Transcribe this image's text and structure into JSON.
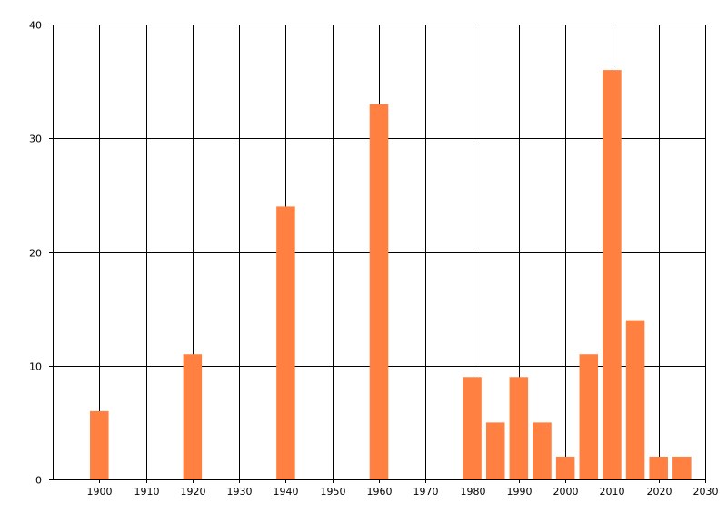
{
  "chart_data": {
    "type": "bar",
    "x": [
      1900,
      1920,
      1940,
      1960,
      1980,
      1985,
      1990,
      1995,
      2000,
      2005,
      2010,
      2015,
      2020,
      2025
    ],
    "values": [
      6,
      11,
      24,
      33,
      9,
      5,
      9,
      5,
      2,
      11,
      36,
      14,
      2,
      2
    ],
    "xlim": [
      1890,
      2030
    ],
    "ylim": [
      0,
      40
    ],
    "x_ticks": [
      "1900",
      "1910",
      "1920",
      "1930",
      "1940",
      "1950",
      "1960",
      "1970",
      "1980",
      "1990",
      "2000",
      "2010",
      "2020",
      "2030"
    ],
    "y_ticks": [
      "0",
      "10",
      "20",
      "30",
      "40"
    ],
    "bar_width_years": 4,
    "bar_color": "#ff8040",
    "grid": true,
    "title": "",
    "xlabel": "",
    "ylabel": ""
  }
}
